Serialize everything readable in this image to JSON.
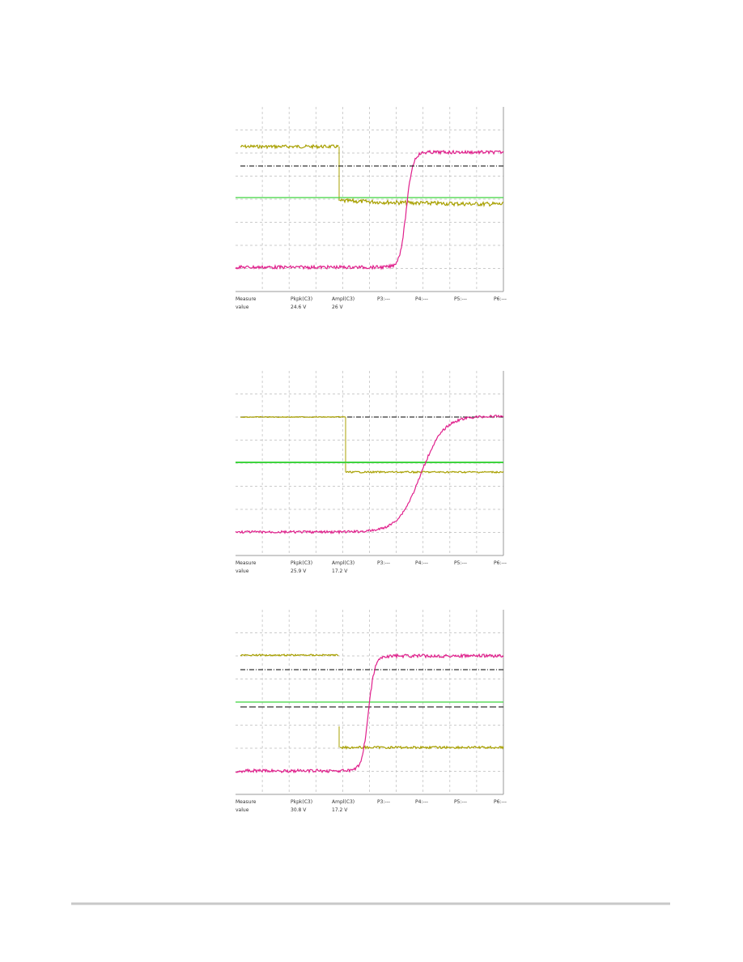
{
  "scopes": [
    {
      "header": [
        "Measure",
        "Pkpk(C3)",
        "Ampl(C3)",
        "P3:---",
        "P4:---",
        "P5:---",
        "P6:---"
      ],
      "values": [
        "value",
        "24.6 V",
        "26 V"
      ]
    },
    {
      "header": [
        "Measure",
        "Pkpk(C3)",
        "Ampl(C3)",
        "P3:---",
        "P4:---",
        "P5:---",
        "P6:---"
      ],
      "values": [
        "value",
        "25.9 V",
        "17.2 V"
      ]
    },
    {
      "header": [
        "Measure",
        "Pkpk(C3)",
        "Ampl(C3)",
        "P3:---",
        "P4:---",
        "P5:---",
        "P6:---"
      ],
      "values": [
        "value",
        "30.8 V",
        "17.2 V"
      ]
    }
  ]
}
